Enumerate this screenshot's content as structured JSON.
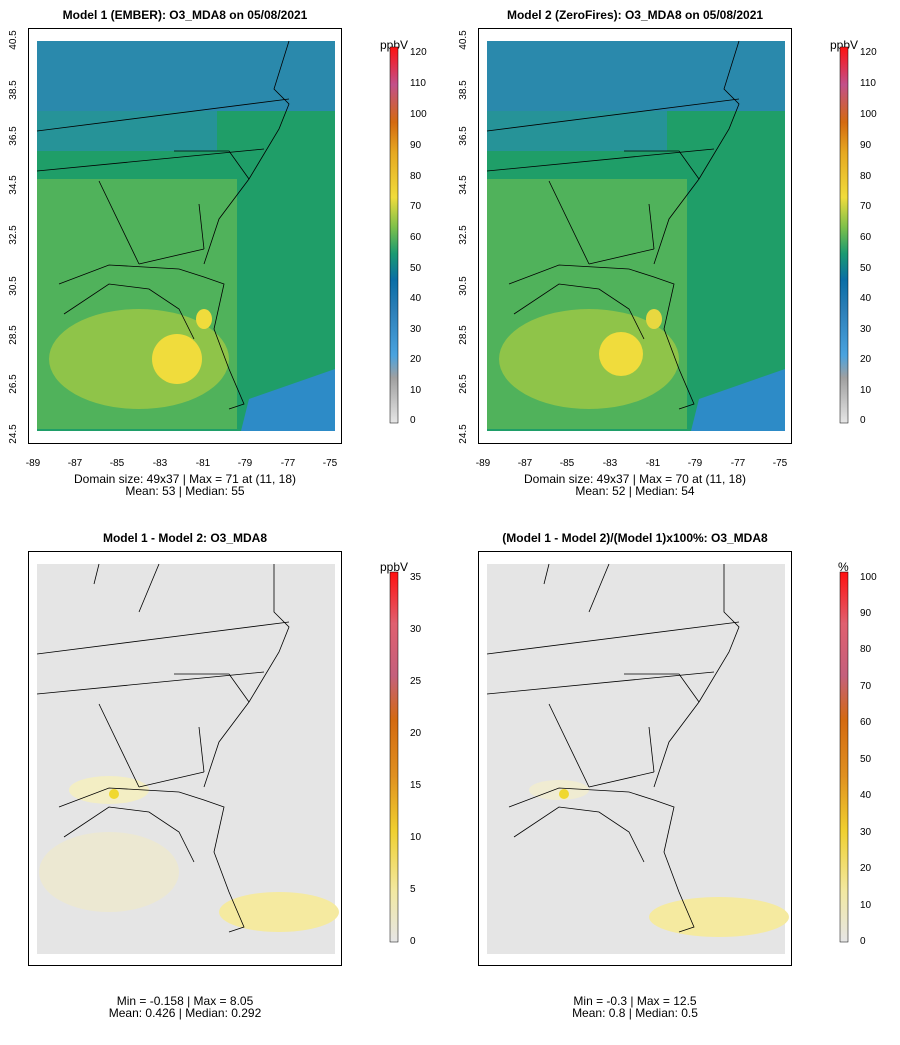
{
  "panels": [
    {
      "title": "Model 1 (EMBER): O3_MDA8 on 05/08/2021",
      "stats_line1": "Domain size: 49x37 | Max = 71 at (11, 18)",
      "stats_line2": "Mean: 53 |  Median: 55",
      "x_ticks": [
        "-89",
        "-87",
        "-85",
        "-83",
        "-81",
        "-79",
        "-77",
        "-75"
      ],
      "y_ticks": [
        "40.5",
        "38.5",
        "36.5",
        "34.5",
        "32.5",
        "30.5",
        "28.5",
        "26.5",
        "24.5"
      ],
      "colorbar": {
        "unit": "ppbV",
        "ticks": [
          "120",
          "110",
          "100",
          "90",
          "80",
          "70",
          "60",
          "50",
          "40",
          "30",
          "20",
          "10",
          "0"
        ]
      }
    },
    {
      "title": "Model 2 (ZeroFires): O3_MDA8 on 05/08/2021",
      "stats_line1": "Domain size: 49x37 | Max = 70 at (11, 18)",
      "stats_line2": "Mean: 52 |  Median: 54",
      "x_ticks": [
        "-89",
        "-87",
        "-85",
        "-83",
        "-81",
        "-79",
        "-77",
        "-75"
      ],
      "y_ticks": [
        "40.5",
        "38.5",
        "36.5",
        "34.5",
        "32.5",
        "30.5",
        "28.5",
        "26.5",
        "24.5"
      ],
      "colorbar": {
        "unit": "ppbV",
        "ticks": [
          "120",
          "110",
          "100",
          "90",
          "80",
          "70",
          "60",
          "50",
          "40",
          "30",
          "20",
          "10",
          "0"
        ]
      }
    },
    {
      "title": "Model 1 - Model 2: O3_MDA8",
      "stats_line1": "Min = -0.158 | Max = 8.05",
      "stats_line2": "Mean: 0.426 |  Median: 0.292",
      "colorbar": {
        "unit": "ppbV",
        "ticks": [
          "35",
          "30",
          "25",
          "20",
          "15",
          "10",
          "5",
          "0"
        ]
      }
    },
    {
      "title": "(Model 1 - Model 2)/(Model 1)x100%: O3_MDA8",
      "stats_line1": "Min = -0.3 | Max = 12.5",
      "stats_line2": "Mean: 0.8 |  Median: 0.5",
      "colorbar": {
        "unit": "%",
        "ticks": [
          "100",
          "90",
          "80",
          "70",
          "60",
          "50",
          "40",
          "30",
          "20",
          "10",
          "0"
        ]
      }
    }
  ],
  "colors": {
    "abs_scale": [
      "#d9d9d9",
      "#a6a6a6",
      "#4aa3df",
      "#2c7fb8",
      "#0a6ea6",
      "#1a9a72",
      "#3aaa5c",
      "#7cc04a",
      "#f0dc3c",
      "#e6a820",
      "#d46a10",
      "#c2508a",
      "#f03030"
    ],
    "diff_scale": [
      "#e0e0e0",
      "#f5eaa0",
      "#f0d030",
      "#e09020",
      "#d46a10",
      "#c4607c",
      "#e83040",
      "#ff1010"
    ],
    "map_bg_diff": "#e5e5e5"
  }
}
